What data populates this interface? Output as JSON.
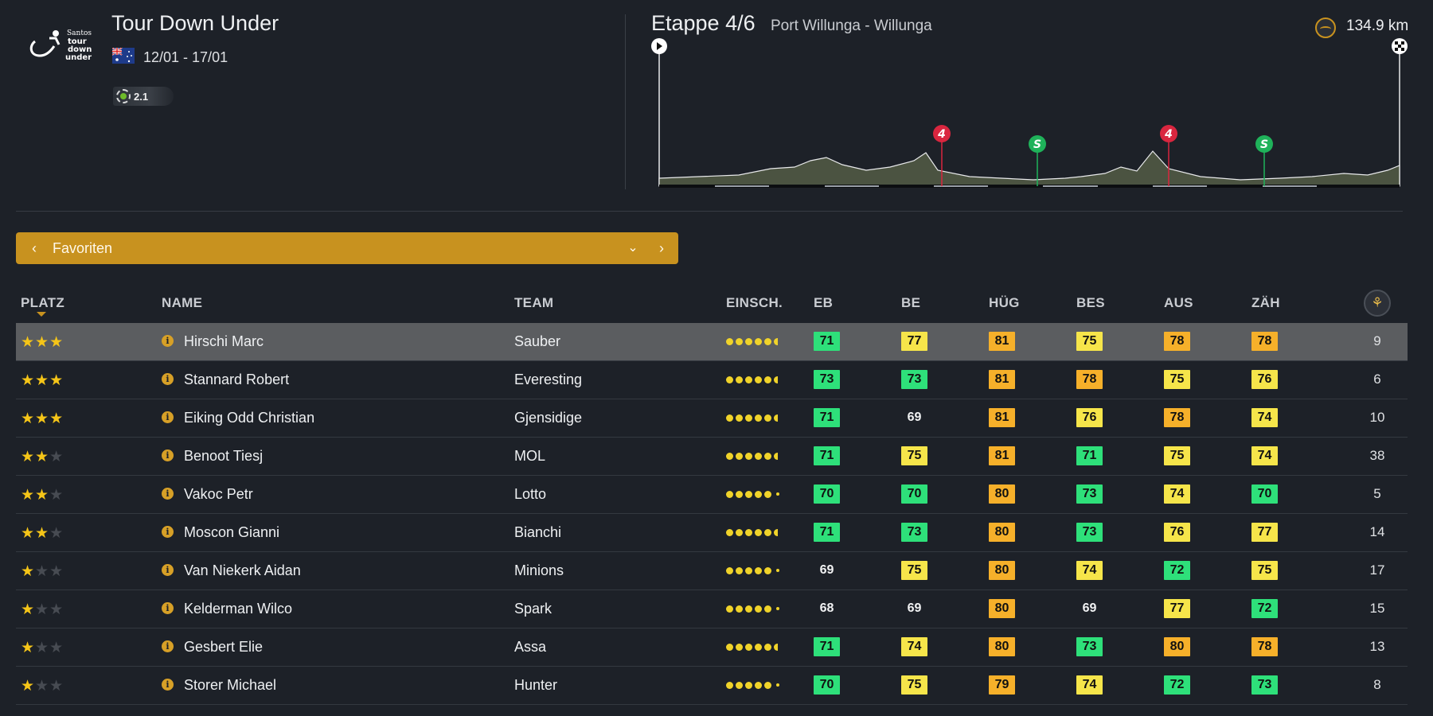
{
  "race": {
    "title": "Tour Down Under",
    "dates": "12/01 - 17/01",
    "category": "2.1",
    "logo_text": [
      "Santos",
      "tour",
      "down",
      "under"
    ]
  },
  "stage": {
    "title": "Etappe 4/6",
    "route": "Port Willunga - Willunga",
    "distance": "134.9 km",
    "climb_markers": [
      {
        "label": "4",
        "kind": "climb",
        "color": "#d9263f"
      },
      {
        "label": "S",
        "kind": "sprint",
        "color": "#1fb25a"
      },
      {
        "label": "4",
        "kind": "climb",
        "color": "#d9263f"
      },
      {
        "label": "S",
        "kind": "sprint",
        "color": "#1fb25a"
      }
    ]
  },
  "selector": {
    "label": "Favoriten",
    "prev_icon": "chevron-left-icon",
    "next_icon": "chevron-right-icon",
    "dropdown_icon": "chevron-down-icon"
  },
  "table": {
    "headers": {
      "rank": "PLATZ",
      "name": "NAME",
      "team": "TEAM",
      "form": "EINSCH.",
      "eb": "EB",
      "be": "BE",
      "hug": "HÜG",
      "bes": "BES",
      "aus": "AUS",
      "zah": "ZÄH"
    },
    "rows": [
      {
        "stars": 3,
        "name": "Hirschi Marc",
        "team": "Sauber",
        "form": "full",
        "eb": "71",
        "be": "77",
        "hug": "81",
        "bes": "75",
        "aus": "78",
        "zah": "78",
        "days": "9",
        "selected": true
      },
      {
        "stars": 3,
        "name": "Stannard Robert",
        "team": "Everesting",
        "form": "full",
        "eb": "73",
        "be": "73",
        "hug": "81",
        "bes": "78",
        "aus": "75",
        "zah": "76",
        "days": "6"
      },
      {
        "stars": 3,
        "name": "Eiking Odd Christian",
        "team": "Gjensidige",
        "form": "full",
        "eb": "71",
        "be": "69",
        "hug": "81",
        "bes": "76",
        "aus": "78",
        "zah": "74",
        "days": "10"
      },
      {
        "stars": 2,
        "name": "Benoot Tiesj",
        "team": "MOL",
        "form": "full",
        "eb": "71",
        "be": "75",
        "hug": "81",
        "bes": "71",
        "aus": "75",
        "zah": "74",
        "days": "38"
      },
      {
        "stars": 2,
        "name": "Vakoc Petr",
        "team": "Lotto",
        "form": "low",
        "eb": "70",
        "be": "70",
        "hug": "80",
        "bes": "73",
        "aus": "74",
        "zah": "70",
        "days": "5"
      },
      {
        "stars": 2,
        "name": "Moscon Gianni",
        "team": "Bianchi",
        "form": "full",
        "eb": "71",
        "be": "73",
        "hug": "80",
        "bes": "73",
        "aus": "76",
        "zah": "77",
        "days": "14"
      },
      {
        "stars": 1,
        "name": "Van Niekerk Aidan",
        "team": "Minions",
        "form": "low",
        "eb": "69",
        "be": "75",
        "hug": "80",
        "bes": "74",
        "aus": "72",
        "zah": "75",
        "days": "17"
      },
      {
        "stars": 1,
        "name": "Kelderman Wilco",
        "team": "Spark",
        "form": "low",
        "eb": "68",
        "be": "69",
        "hug": "80",
        "bes": "69",
        "aus": "77",
        "zah": "72",
        "days": "15"
      },
      {
        "stars": 1,
        "name": "Gesbert Elie",
        "team": "Assa",
        "form": "full",
        "eb": "71",
        "be": "74",
        "hug": "80",
        "bes": "73",
        "aus": "80",
        "zah": "78",
        "days": "13"
      },
      {
        "stars": 1,
        "name": "Storer Michael",
        "team": "Hunter",
        "form": "low",
        "eb": "70",
        "be": "75",
        "hug": "79",
        "bes": "74",
        "aus": "72",
        "zah": "73",
        "days": "8"
      }
    ]
  },
  "colors": {
    "accent": "#c8921f",
    "background": "#1d2128",
    "selected_row": "#5b5d60",
    "stat_green": "#2ee07a",
    "stat_yellow": "#f6e54a",
    "stat_orange": "#f6b02a",
    "star": "#f5c518"
  }
}
